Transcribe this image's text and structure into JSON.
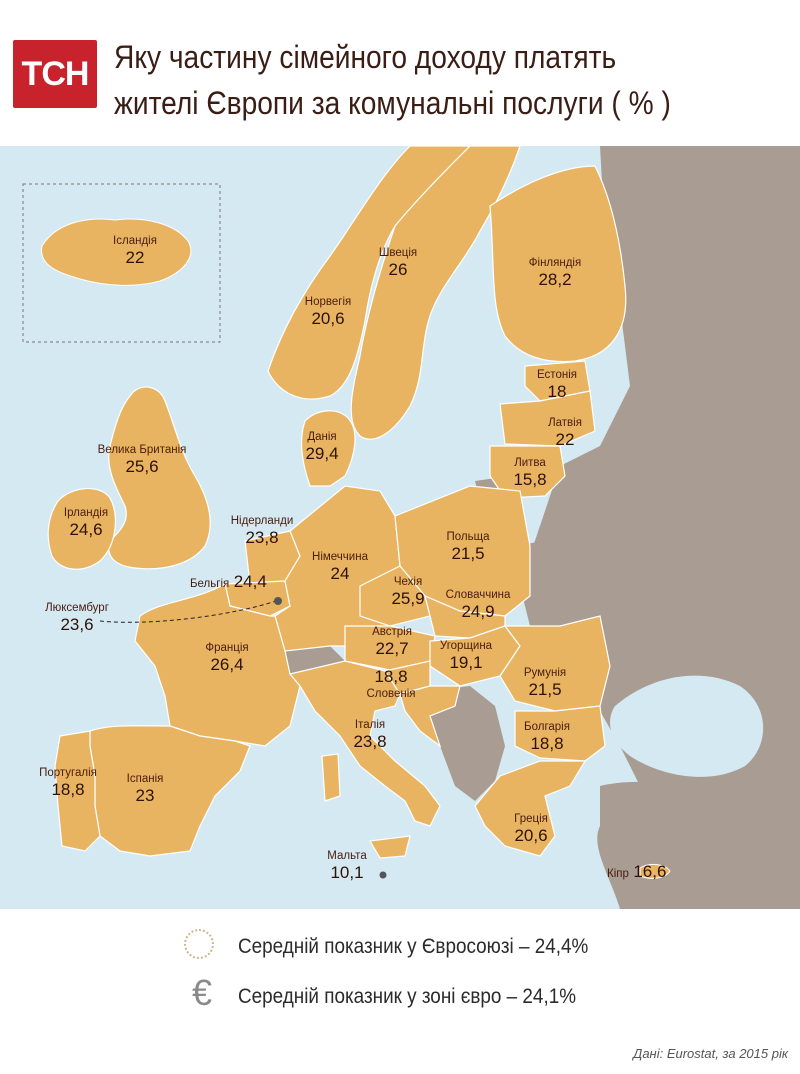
{
  "header": {
    "logo_text": "ТСН",
    "title_line1": "Яку частину сімейного доходу платять",
    "title_line2": "жителі  Європи за комунальні послуги ( % )"
  },
  "colors": {
    "eu_country": "#e8b461",
    "non_eu": "#a89c93",
    "sea": "#d4e9f2",
    "border": "#ffffff",
    "label_text": "#4a1c0e",
    "logo": "#c8232c"
  },
  "countries": [
    {
      "id": "iceland",
      "name": "Ісландія",
      "value": "22"
    },
    {
      "id": "norway",
      "name": "Норвегія",
      "value": "20,6"
    },
    {
      "id": "sweden",
      "name": "Швеція",
      "value": "26"
    },
    {
      "id": "finland",
      "name": "Фінляндія",
      "value": "28,2"
    },
    {
      "id": "estonia",
      "name": "Естонія",
      "value": "18"
    },
    {
      "id": "latvia",
      "name": "Латвія",
      "value": "22"
    },
    {
      "id": "lithuania",
      "name": "Литва",
      "value": "15,8"
    },
    {
      "id": "denmark",
      "name": "Данія",
      "value": "29,4"
    },
    {
      "id": "uk",
      "name": "Велика Британія",
      "value": "25,6"
    },
    {
      "id": "ireland",
      "name": "Ірландія",
      "value": "24,6"
    },
    {
      "id": "netherlands",
      "name": "Нідерланди",
      "value": "23,8"
    },
    {
      "id": "germany",
      "name": "Німеччина",
      "value": "24"
    },
    {
      "id": "poland",
      "name": "Польща",
      "value": "21,5"
    },
    {
      "id": "belgium",
      "name": "Бельгія",
      "value": "24,4"
    },
    {
      "id": "luxembourg",
      "name": "Люксембург",
      "value": "23,6"
    },
    {
      "id": "czechia",
      "name": "Чехія",
      "value": "25,9"
    },
    {
      "id": "slovakia",
      "name": "Словаччина",
      "value": "24,9"
    },
    {
      "id": "france",
      "name": "Франція",
      "value": "26,4"
    },
    {
      "id": "austria",
      "name": "Австрія",
      "value": "22,7"
    },
    {
      "id": "hungary",
      "name": "Угорщина",
      "value": "19,1"
    },
    {
      "id": "slovenia",
      "name": "Словенія",
      "value": "18,8"
    },
    {
      "id": "romania",
      "name": "Румунія",
      "value": "21,5"
    },
    {
      "id": "italy",
      "name": "Італія",
      "value": "23,8"
    },
    {
      "id": "bulgaria",
      "name": "Болгарія",
      "value": "18,8"
    },
    {
      "id": "portugal",
      "name": "Португалія",
      "value": "18,8"
    },
    {
      "id": "spain",
      "name": "Іспанія",
      "value": "23"
    },
    {
      "id": "greece",
      "name": "Греція",
      "value": "20,6"
    },
    {
      "id": "malta",
      "name": "Мальта",
      "value": "10,1"
    },
    {
      "id": "cyprus",
      "name": "Кіпр",
      "value": "16,6"
    }
  ],
  "legend": {
    "eu_average": "Середній показник у Євросоюзі – 24,4%",
    "euro_average": "Середній показник у зоні євро – 24,1%",
    "euro_symbol": "€"
  },
  "source": "Дані: Eurostat, за 2015 рік"
}
